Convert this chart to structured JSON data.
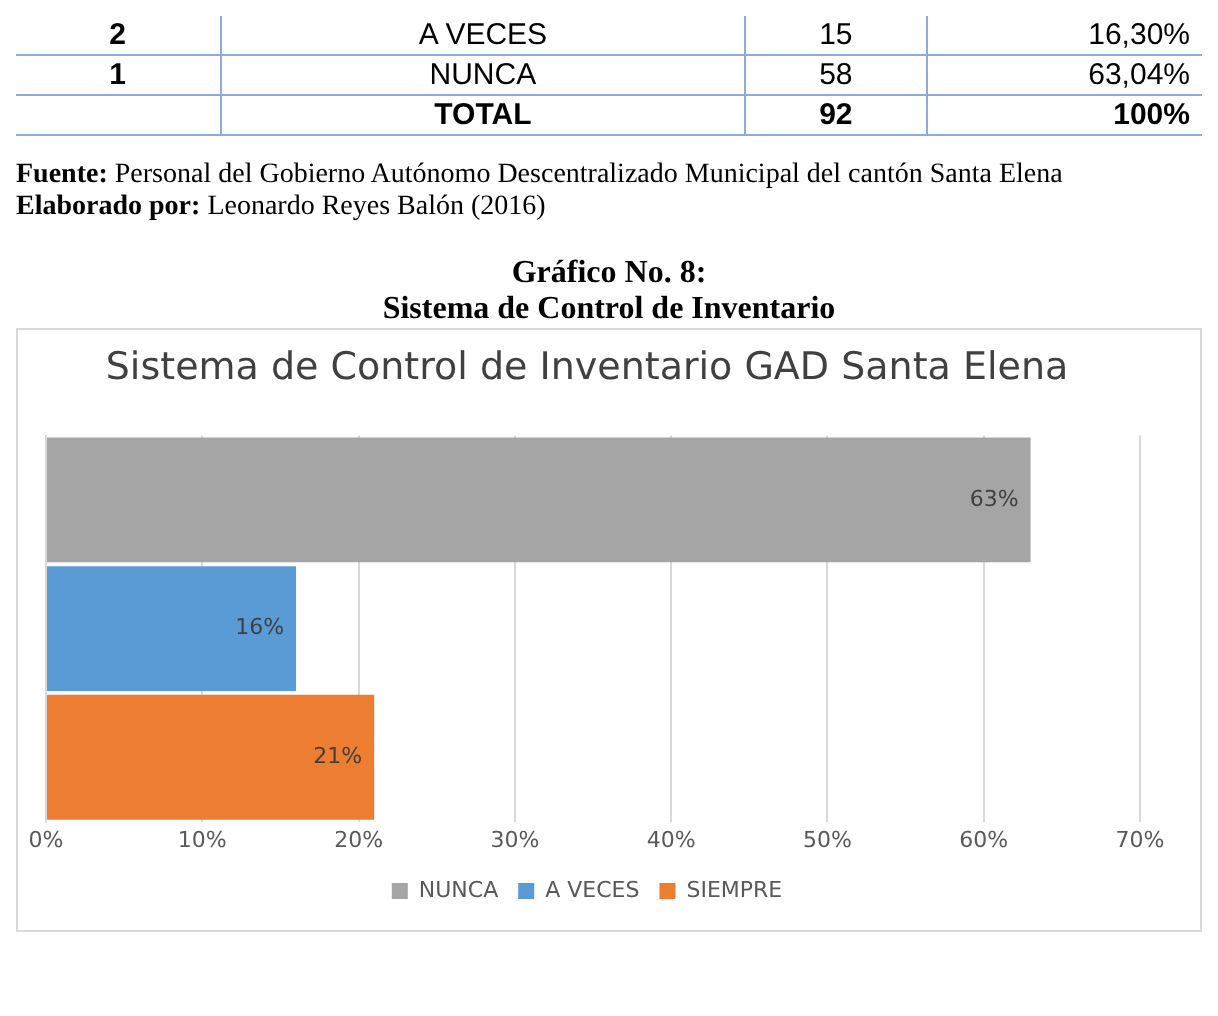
{
  "chart_data": {
    "type": "bar",
    "orientation": "horizontal",
    "title": "Sistema de Control de Inventario GAD Santa Elena",
    "categories": [
      null
    ],
    "series": [
      {
        "name": "NUNCA",
        "color": "#a5a5a5",
        "values": [
          63
        ],
        "value_labels": [
          "63%"
        ]
      },
      {
        "name": "A VECES",
        "color": "#5b9bd5",
        "values": [
          16
        ],
        "value_labels": [
          "16%"
        ]
      },
      {
        "name": "SIEMPRE",
        "color": "#ed7d31",
        "values": [
          21
        ],
        "value_labels": [
          "21%"
        ]
      }
    ],
    "xlim": [
      0,
      70
    ],
    "xticks": [
      {
        "value": 0,
        "label": "0%"
      },
      {
        "value": 10,
        "label": "10%"
      },
      {
        "value": 20,
        "label": "20%"
      },
      {
        "value": 30,
        "label": "30%"
      },
      {
        "value": 40,
        "label": "40%"
      },
      {
        "value": 50,
        "label": "50%"
      },
      {
        "value": 60,
        "label": "60%"
      },
      {
        "value": 70,
        "label": "70%"
      }
    ],
    "grid": "x",
    "legend": "bottom",
    "annotations": [
      "2\tA VECES\t15\t16,30%",
      "1\tNUNCA\t58\t63,04%",
      "\tTOTAL\t92\t100%",
      "Fuente: Personal del Gobierno Autónomo Descentralizado Municipal del cantón Santa Elena",
      "Elaborado por: Leonardo Reyes Balón (2016)",
      "Gráfico No.  8:",
      "Sistema de Control de Inventario"
    ]
  }
}
